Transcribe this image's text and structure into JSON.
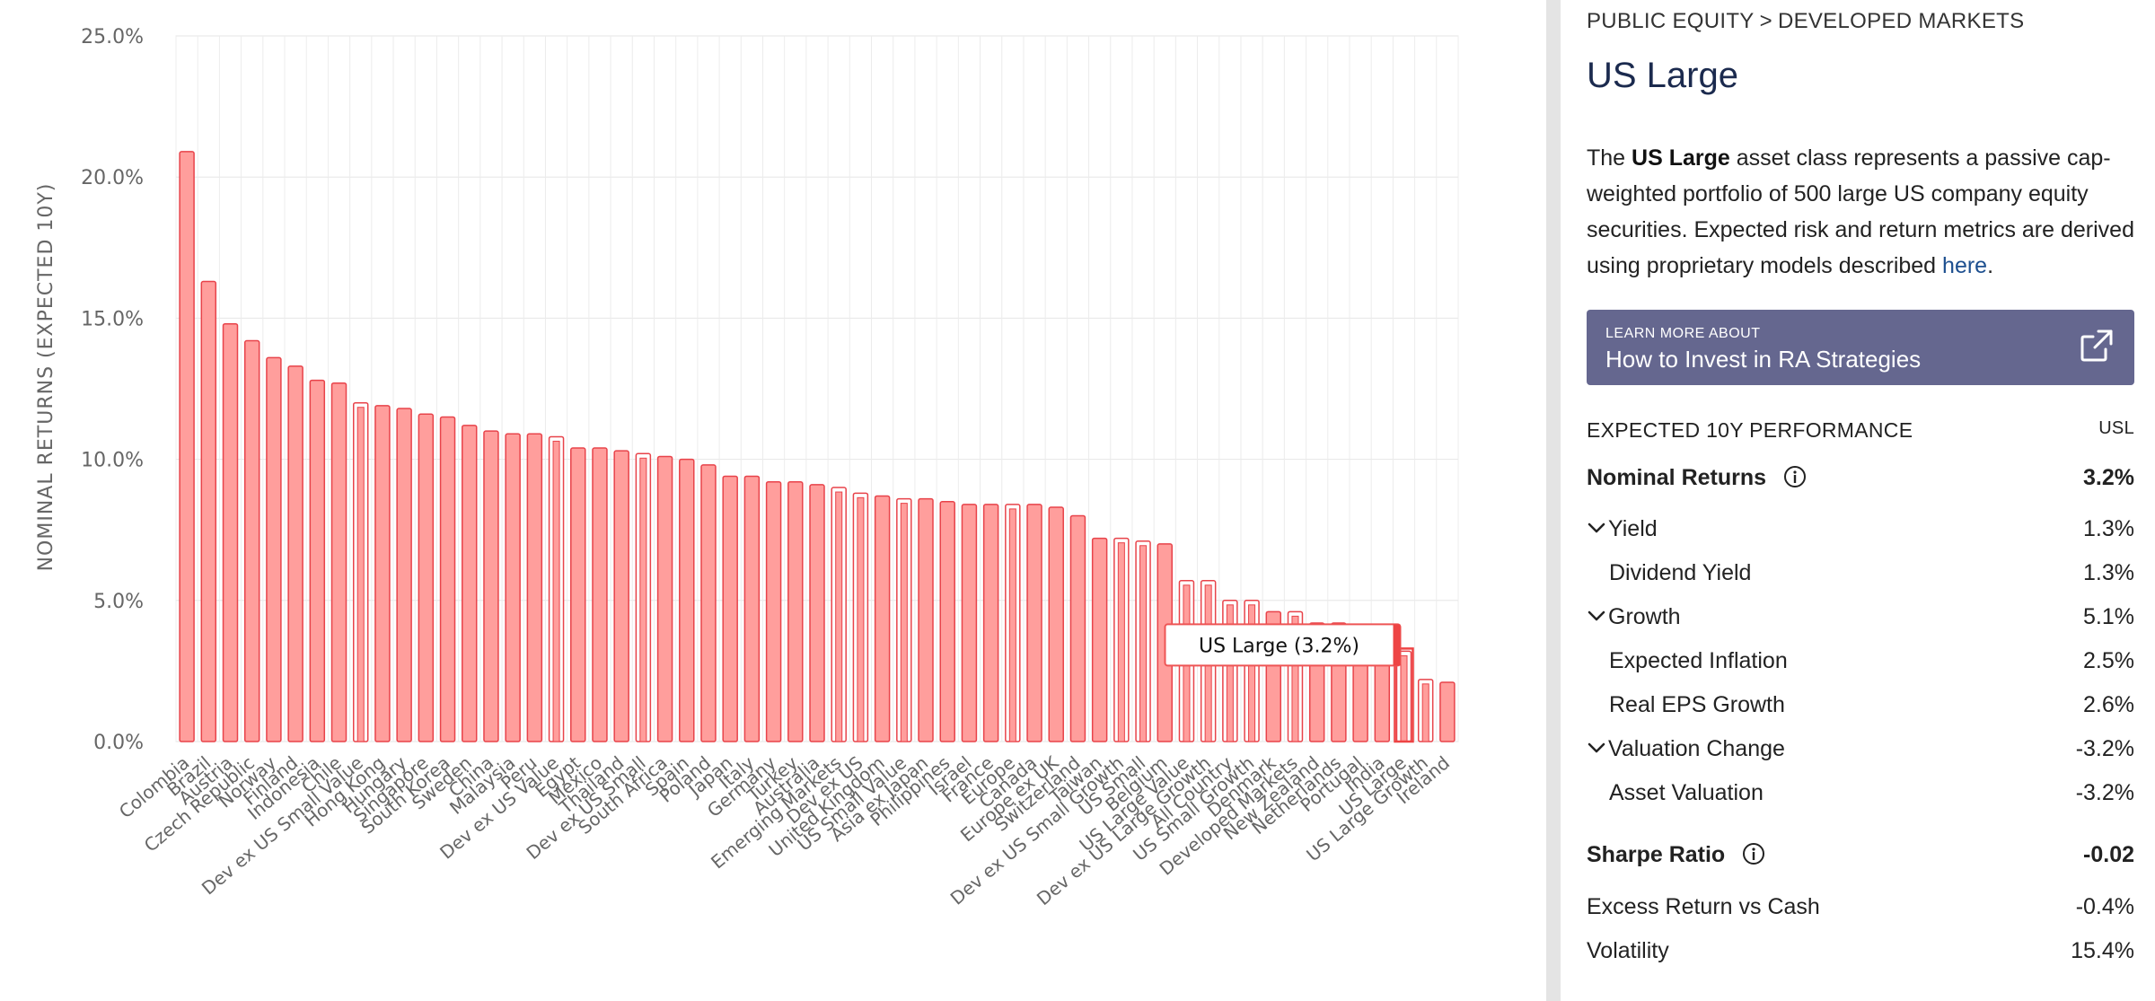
{
  "chart_data": {
    "type": "bar",
    "ylabel": "NOMINAL RETURNS (EXPECTED 10Y)",
    "ylim": [
      0,
      25
    ],
    "yticks": [
      "0.0%",
      "5.0%",
      "10.0%",
      "15.0%",
      "20.0%",
      "25.0%"
    ],
    "ytick_values": [
      0,
      5,
      10,
      15,
      20,
      25
    ],
    "grid": true,
    "colors": {
      "fill": "#ff9e9c",
      "stroke": "#e8434a",
      "highlight": "#ee4444"
    },
    "categories": [
      "Colombia",
      "Brazil",
      "Austria",
      "Czech Republic",
      "Norway",
      "Finland",
      "Indonesia",
      "Chile",
      "Dev ex US Small Value",
      "Hong Kong",
      "Hungary",
      "Singapore",
      "South Korea",
      "Sweden",
      "China",
      "Malaysia",
      "Peru",
      "Dev ex US Value",
      "Egypt",
      "Mexico",
      "Thailand",
      "Dev ex US Small",
      "South Africa",
      "Spain",
      "Poland",
      "Japan",
      "Italy",
      "Germany",
      "Turkey",
      "Australia",
      "Emerging Markets",
      "Dev ex US",
      "United Kingdom",
      "US Small Value",
      "Asia ex Japan",
      "Philippines",
      "Israel",
      "France",
      "Europe",
      "Canada",
      "Europe ex UK",
      "Switzerland",
      "Taiwan",
      "Dev ex US Small Growth",
      "US Small",
      "Belgium",
      "US Large Value",
      "Dev ex US Large Growth",
      "All Country",
      "US Small Growth",
      "Denmark",
      "Developed Markets",
      "New Zealand",
      "Netherlands",
      "Portugal",
      "India",
      "US Large",
      "US Large Growth",
      "Ireland"
    ],
    "values": [
      20.9,
      16.3,
      14.8,
      14.2,
      13.6,
      13.3,
      12.8,
      12.7,
      12.0,
      11.9,
      11.8,
      11.6,
      11.5,
      11.2,
      11.0,
      10.9,
      10.9,
      10.8,
      10.4,
      10.4,
      10.3,
      10.2,
      10.1,
      10.0,
      9.8,
      9.4,
      9.4,
      9.2,
      9.2,
      9.1,
      9.0,
      8.8,
      8.7,
      8.6,
      8.6,
      8.5,
      8.4,
      8.4,
      8.4,
      8.4,
      8.3,
      8.0,
      7.2,
      7.2,
      7.1,
      7.0,
      5.7,
      5.7,
      5.0,
      5.0,
      4.6,
      4.6,
      4.2,
      4.2,
      4.1,
      4.0,
      3.2,
      2.2,
      2.1
    ],
    "index_funds": [
      "Dev ex US Small Value",
      "Dev ex US Value",
      "Dev ex US Small",
      "Emerging Markets",
      "Dev ex US",
      "US Small Value",
      "Europe",
      "Dev ex US Small Growth",
      "US Small",
      "US Large Value",
      "Dev ex US Large Growth",
      "All Country",
      "US Small Growth",
      "Developed Markets",
      "US Large",
      "US Large Growth"
    ],
    "highlighted": "US Large",
    "tooltip": "US Large (3.2%)"
  },
  "panel": {
    "breadcrumb": [
      "PUBLIC EQUITY",
      "DEVELOPED MARKETS"
    ],
    "breadcrumb_sep": ">",
    "title": "US Large",
    "description": {
      "prefix": "The ",
      "bold": "US Large",
      "middle": " asset class represents a passive cap-weighted portfolio of 500 large US company equity securities. Expected risk and return metrics are derived using proprietary models described ",
      "link": "here",
      "suffix": "."
    },
    "learn_more": {
      "small": "LEARN MORE ABOUT",
      "big": "How to Invest in RA Strategies",
      "icon": "external-link-icon"
    },
    "performance_header": "EXPECTED 10Y PERFORMANCE",
    "ticker": "USL",
    "rows": {
      "nominal": {
        "label": "Nominal Returns",
        "value": "3.2%"
      },
      "yield": {
        "label": "Yield",
        "value": "1.3%"
      },
      "dividend_yield": {
        "label": "Dividend Yield",
        "value": "1.3%"
      },
      "growth": {
        "label": "Growth",
        "value": "5.1%"
      },
      "expected_inflation": {
        "label": "Expected Inflation",
        "value": "2.5%"
      },
      "real_eps_growth": {
        "label": "Real EPS Growth",
        "value": "2.6%"
      },
      "valuation_change": {
        "label": "Valuation Change",
        "value": "-3.2%"
      },
      "asset_valuation": {
        "label": "Asset Valuation",
        "value": "-3.2%"
      },
      "sharpe": {
        "label": "Sharpe Ratio",
        "value": "-0.02"
      },
      "excess_return": {
        "label": "Excess Return vs Cash",
        "value": "-0.4%"
      },
      "volatility": {
        "label": "Volatility",
        "value": "15.4%"
      }
    }
  }
}
